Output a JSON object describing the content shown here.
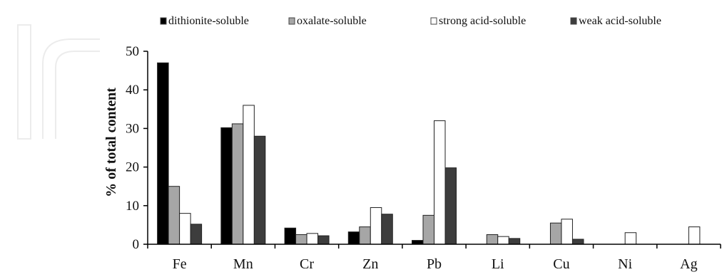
{
  "chart_data": {
    "type": "bar",
    "categories": [
      "Fe",
      "Mn",
      "Cr",
      "Zn",
      "Pb",
      "Li",
      "Cu",
      "Ni",
      "Ag"
    ],
    "series": [
      {
        "name": "dithionite-soluble",
        "color": "#000000",
        "values": [
          47,
          30.2,
          4.2,
          3.2,
          1,
          0,
          0,
          0,
          0
        ]
      },
      {
        "name": "oxalate-soluble",
        "color": "#a6a6a6",
        "values": [
          15,
          31.2,
          2.5,
          4.5,
          7.5,
          2.5,
          5.5,
          0,
          0
        ]
      },
      {
        "name": "strong acid-soluble",
        "color": "#ffffff",
        "values": [
          8,
          36,
          2.8,
          9.5,
          32,
          2,
          6.5,
          3,
          4.5
        ]
      },
      {
        "name": "weak acid-soluble",
        "color": "#3d3d3d",
        "values": [
          5.2,
          28,
          2.2,
          7.8,
          19.8,
          1.5,
          1.3,
          0,
          0
        ]
      }
    ],
    "ylabel": "% of total content",
    "ylim": [
      0,
      50
    ],
    "yticks": [
      0,
      10,
      20,
      30,
      40,
      50
    ],
    "legend_position": "top",
    "grid": false
  }
}
